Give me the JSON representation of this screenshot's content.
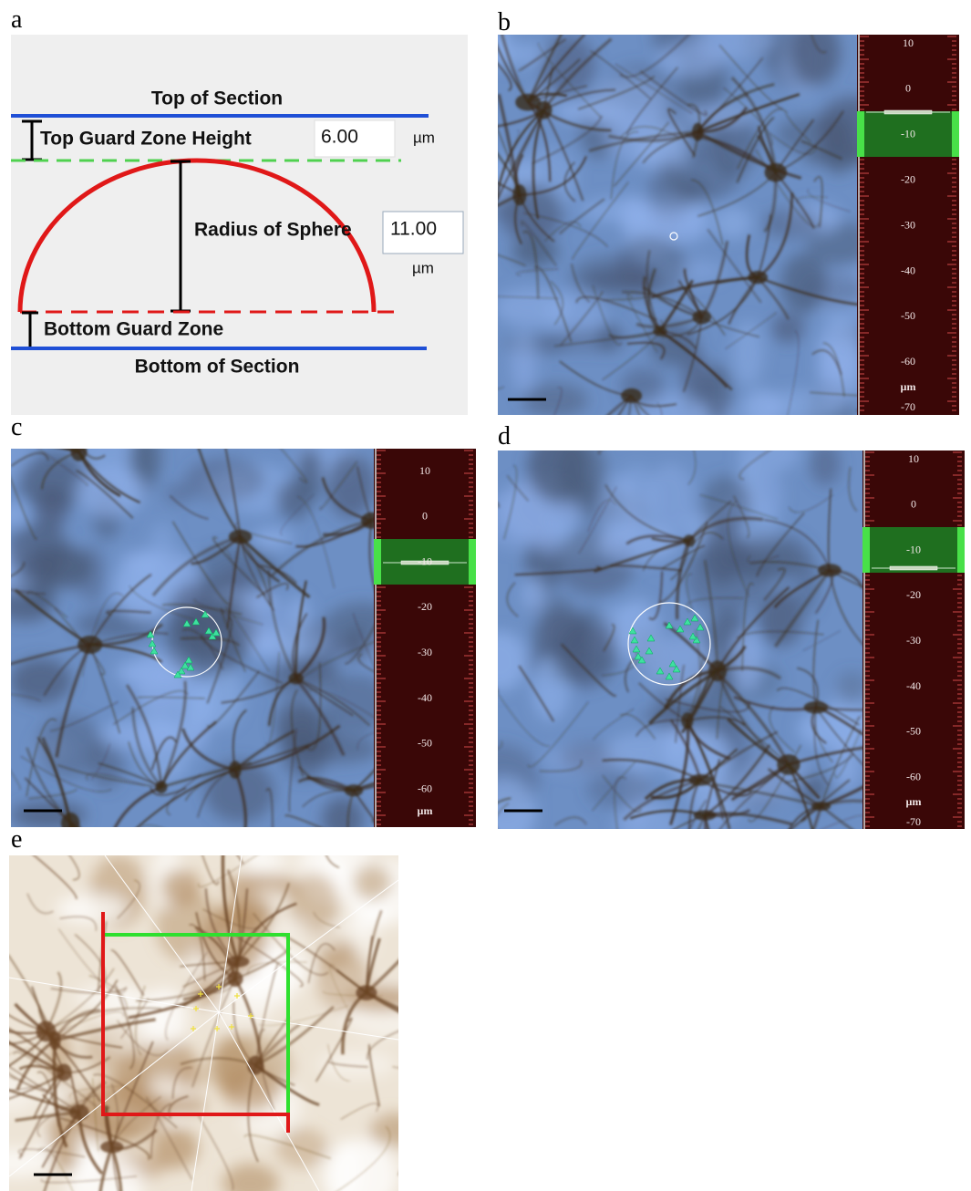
{
  "panel_a": {
    "letter": "a",
    "top_of_section": "Top of Section",
    "top_guard_label": "Top Guard Zone Height",
    "top_guard_value": "6.00",
    "top_guard_unit": "µm",
    "radius_label": "Radius of Sphere",
    "radius_value": "11.00",
    "radius_unit": "µm",
    "bottom_guard_label": "Bottom Guard Zone",
    "bottom_of_section": "Bottom of Section"
  },
  "panel_b": {
    "letter": "b",
    "depth_labels": [
      "10",
      "0",
      "-10",
      "-20",
      "-30",
      "-40",
      "-50",
      "-60",
      "-70"
    ],
    "unit": "µm"
  },
  "panel_c": {
    "letter": "c",
    "depth_labels": [
      "10",
      "0",
      "-10",
      "-20",
      "-30",
      "-40",
      "-50",
      "-60"
    ],
    "unit": "µm"
  },
  "panel_d": {
    "letter": "d",
    "depth_labels": [
      "10",
      "0",
      "-10",
      "-20",
      "-30",
      "-40",
      "-50",
      "-60",
      "-70"
    ],
    "unit": "µm"
  },
  "panel_e": {
    "letter": "e"
  }
}
